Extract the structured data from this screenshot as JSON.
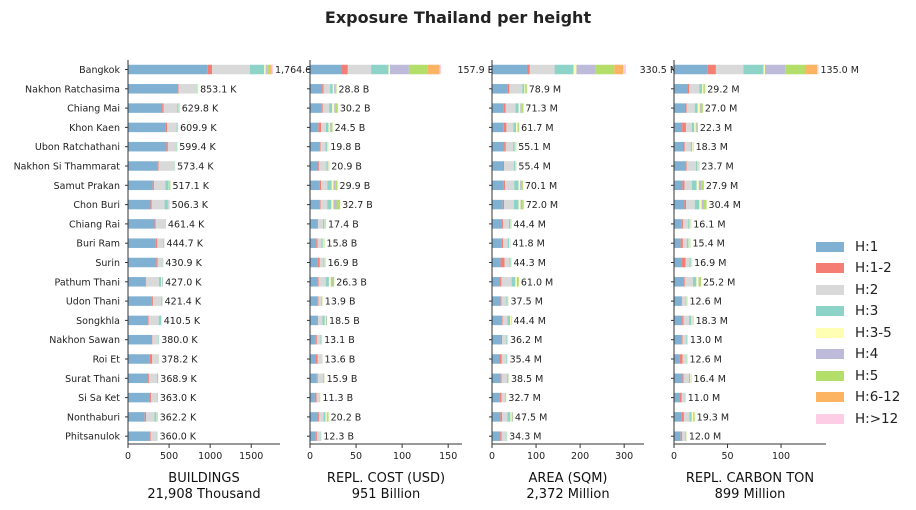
{
  "title": "Exposure Thailand per height",
  "legend": [
    {
      "label": "H:1",
      "color": "#80b1d3"
    },
    {
      "label": "H:1-2",
      "color": "#f47e73"
    },
    {
      "label": "H:2",
      "color": "#d9d9d9"
    },
    {
      "label": "H:3",
      "color": "#8dd3c7"
    },
    {
      "label": "H:3-5",
      "color": "#ffffb3"
    },
    {
      "label": "H:4",
      "color": "#bebada"
    },
    {
      "label": "H:5",
      "color": "#b3de69"
    },
    {
      "label": "H:6-12",
      "color": "#fdb462"
    },
    {
      "label": "H:>12",
      "color": "#fccde5"
    }
  ],
  "chart_data": [
    {
      "type": "bar",
      "orientation": "horizontal",
      "stacked": true,
      "xlabel": "BUILDINGS",
      "xsublabel": "21,908 Thousand",
      "xlim": [
        0,
        1850
      ],
      "xticks": [
        0,
        500,
        1000,
        1500
      ],
      "categories": [
        "Bangkok",
        "Nakhon Ratchasima",
        "Chiang Mai",
        "Khon Kaen",
        "Ubon Ratchathani",
        "Nakhon Si Thammarat",
        "Samut Prakan",
        "Chon Buri",
        "Chiang Rai",
        "Buri Ram",
        "Surin",
        "Pathum Thani",
        "Udon Thani",
        "Songkhla",
        "Nakhon Sawan",
        "Roi Et",
        "Surat Thani",
        "Si Sa Ket",
        "Nonthaburi",
        "Phitsanulok"
      ],
      "totals": [
        1764.6,
        853.1,
        629.8,
        609.9,
        599.4,
        573.4,
        517.1,
        506.3,
        461.4,
        444.7,
        430.9,
        427.0,
        421.4,
        410.5,
        380.0,
        378.2,
        368.9,
        363.0,
        362.2,
        360.0
      ],
      "total_labels": [
        "1,764.6 K",
        "853.1 K",
        "629.8 K",
        "609.9 K",
        "599.4 K",
        "573.4 K",
        "517.1 K",
        "506.3 K",
        "461.4 K",
        "444.7 K",
        "430.9 K",
        "427.0 K",
        "421.4 K",
        "410.5 K",
        "380.0 K",
        "378.2 K",
        "368.9 K",
        "363.0 K",
        "362.2 K",
        "360.0 K"
      ],
      "shares": [
        [
          0.55,
          0.03,
          0.26,
          0.1,
          0.01,
          0.01,
          0.02,
          0.01,
          0.01
        ],
        [
          0.7,
          0.02,
          0.25,
          0.01,
          0.01,
          0.005,
          0.005,
          0,
          0
        ],
        [
          0.66,
          0.03,
          0.26,
          0.03,
          0.01,
          0.005,
          0.005,
          0,
          0
        ],
        [
          0.75,
          0.03,
          0.19,
          0.02,
          0.005,
          0.005,
          0,
          0,
          0
        ],
        [
          0.78,
          0.03,
          0.16,
          0.02,
          0.005,
          0.005,
          0,
          0,
          0
        ],
        [
          0.62,
          0.03,
          0.33,
          0.01,
          0.005,
          0.005,
          0,
          0,
          0
        ],
        [
          0.58,
          0.03,
          0.27,
          0.08,
          0.01,
          0.02,
          0.01,
          0,
          0
        ],
        [
          0.54,
          0.03,
          0.31,
          0.08,
          0.01,
          0.02,
          0.01,
          0,
          0
        ],
        [
          0.7,
          0.03,
          0.25,
          0.01,
          0.005,
          0.005,
          0,
          0,
          0
        ],
        [
          0.76,
          0.04,
          0.17,
          0.02,
          0.005,
          0.005,
          0,
          0,
          0
        ],
        [
          0.8,
          0.04,
          0.14,
          0.01,
          0.005,
          0.005,
          0,
          0,
          0
        ],
        [
          0.49,
          0.03,
          0.36,
          0.07,
          0.02,
          0.02,
          0.01,
          0,
          0
        ],
        [
          0.69,
          0.03,
          0.24,
          0.03,
          0.005,
          0.005,
          0,
          0,
          0
        ],
        [
          0.58,
          0.03,
          0.3,
          0.07,
          0.01,
          0.01,
          0,
          0,
          0
        ],
        [
          0.74,
          0.04,
          0.19,
          0.02,
          0.005,
          0.005,
          0,
          0,
          0
        ],
        [
          0.7,
          0.08,
          0.2,
          0.01,
          0.005,
          0.005,
          0,
          0,
          0
        ],
        [
          0.66,
          0.03,
          0.27,
          0.03,
          0.005,
          0.005,
          0,
          0,
          0
        ],
        [
          0.72,
          0.05,
          0.2,
          0.02,
          0.005,
          0.005,
          0,
          0,
          0
        ],
        [
          0.56,
          0.05,
          0.28,
          0.07,
          0.02,
          0.02,
          0,
          0,
          0
        ],
        [
          0.73,
          0.04,
          0.2,
          0.02,
          0.005,
          0.005,
          0,
          0,
          0
        ]
      ]
    },
    {
      "type": "bar",
      "orientation": "horizontal",
      "stacked": true,
      "xlabel": "REPL. COST (USD)",
      "xsublabel": "951 Billion",
      "xlim": [
        0,
        165
      ],
      "xticks": [
        0,
        50,
        100,
        150
      ],
      "totals": [
        157.9,
        28.8,
        30.2,
        24.5,
        19.8,
        20.9,
        29.9,
        32.7,
        17.4,
        15.8,
        16.9,
        26.3,
        13.9,
        18.5,
        13.1,
        13.6,
        15.9,
        11.3,
        20.2,
        12.3
      ],
      "total_labels": [
        "157.9 B",
        "28.8 B",
        "30.2 B",
        "24.5 B",
        "19.8 B",
        "20.9 B",
        "29.9 B",
        "32.7 B",
        "17.4 B",
        "15.8 B",
        "16.9 B",
        "26.3 B",
        "13.9 B",
        "18.5 B",
        "13.1 B",
        "13.6 B",
        "15.9 B",
        "11.3 B",
        "20.2 B",
        "12.3 B"
      ],
      "shares": [
        [
          0.22,
          0.04,
          0.16,
          0.12,
          0.01,
          0.13,
          0.13,
          0.08,
          0.01
        ],
        [
          0.46,
          0.05,
          0.25,
          0.1,
          0.05,
          0.04,
          0.05,
          0,
          0
        ],
        [
          0.4,
          0.06,
          0.23,
          0.11,
          0.07,
          0.05,
          0.08,
          0,
          0
        ],
        [
          0.37,
          0.13,
          0.2,
          0.12,
          0.06,
          0.04,
          0.08,
          0,
          0
        ],
        [
          0.5,
          0.08,
          0.27,
          0.08,
          0.03,
          0.02,
          0.02,
          0,
          0
        ],
        [
          0.43,
          0.05,
          0.37,
          0.08,
          0.03,
          0.02,
          0.02,
          0,
          0
        ],
        [
          0.35,
          0.05,
          0.23,
          0.16,
          0.06,
          0.07,
          0.08,
          0,
          0
        ],
        [
          0.31,
          0.04,
          0.22,
          0.14,
          0.07,
          0.1,
          0.12,
          0,
          0
        ],
        [
          0.45,
          0.06,
          0.3,
          0.1,
          0.04,
          0.03,
          0.02,
          0,
          0
        ],
        [
          0.43,
          0.1,
          0.25,
          0.1,
          0.06,
          0.03,
          0.03,
          0,
          0
        ],
        [
          0.5,
          0.13,
          0.23,
          0.07,
          0.03,
          0.02,
          0.02,
          0,
          0
        ],
        [
          0.32,
          0.04,
          0.29,
          0.13,
          0.08,
          0.07,
          0.07,
          0,
          0
        ],
        [
          0.6,
          0.06,
          0.24,
          0.05,
          0.03,
          0.01,
          0.01,
          0,
          0
        ],
        [
          0.42,
          0.06,
          0.25,
          0.14,
          0.06,
          0.04,
          0.03,
          0,
          0
        ],
        [
          0.47,
          0.1,
          0.3,
          0.07,
          0.03,
          0.02,
          0.01,
          0,
          0
        ],
        [
          0.43,
          0.19,
          0.27,
          0.05,
          0.03,
          0.02,
          0.01,
          0,
          0
        ],
        [
          0.47,
          0.06,
          0.35,
          0.07,
          0.03,
          0.01,
          0.01,
          0,
          0
        ],
        [
          0.47,
          0.16,
          0.27,
          0.05,
          0.03,
          0.01,
          0.01,
          0,
          0
        ],
        [
          0.38,
          0.1,
          0.24,
          0.11,
          0.07,
          0.05,
          0.05,
          0,
          0
        ],
        [
          0.51,
          0.1,
          0.3,
          0.05,
          0.02,
          0.01,
          0.01,
          0,
          0
        ]
      ]
    },
    {
      "type": "bar",
      "orientation": "horizontal",
      "stacked": true,
      "xlabel": "AREA (SQM)",
      "xsublabel": "2,372 Million",
      "xlim": [
        0,
        345
      ],
      "xticks": [
        0,
        100,
        200,
        300
      ],
      "totals": [
        330.5,
        78.9,
        71.3,
        61.7,
        55.1,
        55.4,
        70.1,
        72.0,
        44.4,
        41.8,
        44.3,
        61.0,
        37.5,
        44.4,
        36.2,
        35.4,
        38.5,
        32.7,
        47.5,
        34.3
      ],
      "total_labels": [
        "330.5 M",
        "78.9 M",
        "71.3 M",
        "61.7 M",
        "55.1 M",
        "55.4 M",
        "70.1 M",
        "72.0 M",
        "44.4 M",
        "41.8 M",
        "44.3 M",
        "61.0 M",
        "37.5 M",
        "44.4 M",
        "36.2 M",
        "35.4 M",
        "38.5 M",
        "32.7 M",
        "47.5 M",
        "34.3 M"
      ],
      "shares": [
        [
          0.24,
          0.02,
          0.17,
          0.13,
          0.02,
          0.13,
          0.13,
          0.06,
          0.02
        ],
        [
          0.45,
          0.05,
          0.37,
          0.06,
          0.02,
          0.02,
          0.03,
          0,
          0
        ],
        [
          0.38,
          0.05,
          0.32,
          0.1,
          0.05,
          0.03,
          0.07,
          0,
          0
        ],
        [
          0.43,
          0.1,
          0.26,
          0.1,
          0.05,
          0.03,
          0.03,
          0,
          0
        ],
        [
          0.5,
          0.07,
          0.3,
          0.07,
          0.03,
          0.02,
          0.01,
          0,
          0
        ],
        [
          0.45,
          0.05,
          0.4,
          0.06,
          0.02,
          0.01,
          0.01,
          0,
          0
        ],
        [
          0.38,
          0.04,
          0.3,
          0.14,
          0.05,
          0.05,
          0.04,
          0,
          0
        ],
        [
          0.34,
          0.04,
          0.31,
          0.15,
          0.06,
          0.05,
          0.05,
          0,
          0
        ],
        [
          0.51,
          0.05,
          0.3,
          0.09,
          0.03,
          0.01,
          0.01,
          0,
          0
        ],
        [
          0.5,
          0.1,
          0.25,
          0.08,
          0.04,
          0.02,
          0.01,
          0,
          0
        ],
        [
          0.44,
          0.2,
          0.26,
          0.06,
          0.02,
          0.01,
          0.01,
          0,
          0
        ],
        [
          0.3,
          0.05,
          0.38,
          0.14,
          0.06,
          0.04,
          0.03,
          0,
          0
        ],
        [
          0.52,
          0.05,
          0.3,
          0.08,
          0.03,
          0.01,
          0.01,
          0,
          0
        ],
        [
          0.48,
          0.06,
          0.25,
          0.13,
          0.05,
          0.02,
          0.01,
          0,
          0
        ],
        [
          0.56,
          0.07,
          0.27,
          0.06,
          0.02,
          0.01,
          0.01,
          0,
          0
        ],
        [
          0.45,
          0.18,
          0.28,
          0.05,
          0.02,
          0.01,
          0.01,
          0,
          0
        ],
        [
          0.51,
          0.05,
          0.33,
          0.07,
          0.02,
          0.01,
          0.01,
          0,
          0
        ],
        [
          0.5,
          0.17,
          0.25,
          0.05,
          0.02,
          0.005,
          0.005,
          0,
          0
        ],
        [
          0.4,
          0.08,
          0.26,
          0.14,
          0.06,
          0.04,
          0.02,
          0,
          0
        ],
        [
          0.55,
          0.08,
          0.29,
          0.05,
          0.02,
          0.005,
          0.005,
          0,
          0
        ]
      ]
    },
    {
      "type": "bar",
      "orientation": "horizontal",
      "stacked": true,
      "xlabel": "REPL. CARBON TON",
      "xsublabel": "899 Million",
      "xlim": [
        0,
        142
      ],
      "xticks": [
        0,
        50,
        100
      ],
      "totals": [
        135.0,
        29.2,
        27.0,
        22.3,
        18.3,
        23.7,
        27.9,
        30.4,
        16.1,
        15.4,
        16.9,
        25.2,
        12.6,
        18.3,
        13.0,
        12.6,
        16.4,
        11.0,
        19.3,
        12.0
      ],
      "total_labels": [
        "135.0 M",
        "29.2 M",
        "27.0 M",
        "22.3 M",
        "18.3 M",
        "23.7 M",
        "27.9 M",
        "30.4 M",
        "16.1 M",
        "15.4 M",
        "16.9 M",
        "25.2 M",
        "12.6 M",
        "18.3 M",
        "13.0 M",
        "12.6 M",
        "16.4 M",
        "11.0 M",
        "19.3 M",
        "12.0 M"
      ],
      "shares": [
        [
          0.23,
          0.06,
          0.19,
          0.14,
          0.01,
          0.14,
          0.14,
          0.08,
          0.01
        ],
        [
          0.43,
          0.06,
          0.32,
          0.09,
          0.04,
          0.03,
          0.03,
          0,
          0
        ],
        [
          0.38,
          0.06,
          0.28,
          0.1,
          0.07,
          0.04,
          0.07,
          0,
          0
        ],
        [
          0.34,
          0.16,
          0.25,
          0.1,
          0.06,
          0.04,
          0.05,
          0,
          0
        ],
        [
          0.46,
          0.09,
          0.3,
          0.07,
          0.04,
          0.02,
          0.02,
          0,
          0
        ],
        [
          0.45,
          0.05,
          0.36,
          0.07,
          0.03,
          0.02,
          0.02,
          0,
          0
        ],
        [
          0.28,
          0.07,
          0.25,
          0.16,
          0.07,
          0.08,
          0.09,
          0,
          0
        ],
        [
          0.32,
          0.05,
          0.27,
          0.14,
          0.07,
          0.07,
          0.08,
          0,
          0
        ],
        [
          0.45,
          0.07,
          0.3,
          0.09,
          0.05,
          0.02,
          0.02,
          0,
          0
        ],
        [
          0.4,
          0.14,
          0.25,
          0.1,
          0.06,
          0.03,
          0.02,
          0,
          0
        ],
        [
          0.42,
          0.22,
          0.22,
          0.07,
          0.04,
          0.02,
          0.01,
          0,
          0
        ],
        [
          0.35,
          0.05,
          0.3,
          0.13,
          0.08,
          0.05,
          0.04,
          0,
          0
        ],
        [
          0.54,
          0.07,
          0.25,
          0.07,
          0.04,
          0.02,
          0.01,
          0,
          0
        ],
        [
          0.42,
          0.07,
          0.28,
          0.12,
          0.06,
          0.03,
          0.02,
          0,
          0
        ],
        [
          0.52,
          0.1,
          0.26,
          0.06,
          0.03,
          0.02,
          0.01,
          0,
          0
        ],
        [
          0.4,
          0.24,
          0.24,
          0.06,
          0.03,
          0.02,
          0.01,
          0,
          0
        ],
        [
          0.48,
          0.06,
          0.31,
          0.07,
          0.04,
          0.02,
          0.02,
          0,
          0
        ],
        [
          0.46,
          0.2,
          0.25,
          0.05,
          0.02,
          0.01,
          0.01,
          0,
          0
        ],
        [
          0.38,
          0.1,
          0.26,
          0.12,
          0.07,
          0.04,
          0.03,
          0,
          0
        ],
        [
          0.52,
          0.1,
          0.27,
          0.06,
          0.03,
          0.01,
          0.01,
          0,
          0
        ]
      ]
    }
  ]
}
